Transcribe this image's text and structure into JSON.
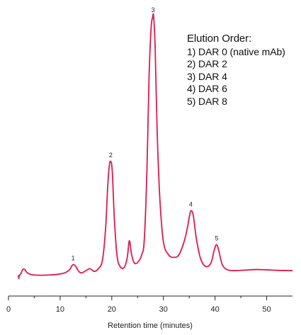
{
  "chart_data": {
    "type": "line",
    "xlabel": "Retention time (minutes)",
    "ylabel": "",
    "xlim": [
      0,
      55
    ],
    "ylim": [
      0,
      100
    ],
    "x_ticks": [
      0,
      10,
      20,
      30,
      40,
      50
    ],
    "grid": false,
    "line_color": "#e0194a",
    "legend": {
      "placement": "top-right",
      "title": "Elution Order:",
      "entries": [
        "1)  DAR 0 (native mAb)",
        "2)  DAR 2",
        "3)  DAR 4",
        "4)  DAR 6",
        "5)  DAR 8"
      ]
    },
    "peaks": [
      {
        "label": "1",
        "x": 12.5,
        "y": 4.2
      },
      {
        "label": "2",
        "x": 19.8,
        "y": 44.0
      },
      {
        "label": "3",
        "x": 28.0,
        "y": 100.0
      },
      {
        "label": "4",
        "x": 35.3,
        "y": 25.0
      },
      {
        "label": "5",
        "x": 40.3,
        "y": 11.9
      }
    ],
    "series": [
      {
        "x": [
          2.0,
          2.3,
          2.5,
          2.8,
          3.2,
          3.6,
          4.5,
          6.0,
          8.0,
          10.0,
          11.0,
          11.8,
          12.3,
          12.6,
          13.0,
          13.6,
          14.2,
          15.0,
          15.8,
          16.6,
          17.4,
          18.2,
          18.8,
          19.2,
          19.5,
          19.8,
          20.1,
          20.5,
          21.0,
          21.6,
          22.4,
          23.0,
          23.4,
          23.8,
          24.3,
          25.0,
          25.8,
          26.3,
          26.8,
          27.2,
          27.6,
          27.9,
          28.1,
          28.4,
          28.8,
          29.3,
          30.0,
          31.0,
          32.0,
          33.0,
          34.0,
          34.6,
          35.1,
          35.4,
          35.8,
          36.4,
          37.2,
          38.2,
          39.2,
          39.8,
          40.3,
          40.8,
          41.4,
          42.4,
          44.0,
          46.0,
          48.0,
          50.0,
          52.0,
          55.0
        ],
        "y": [
          0.0,
          0.5,
          1.2,
          2.4,
          2.2,
          1.1,
          0.3,
          0.1,
          0.2,
          0.6,
          1.1,
          2.2,
          3.8,
          4.2,
          3.6,
          1.6,
          1.0,
          1.9,
          2.6,
          1.6,
          2.6,
          6.0,
          18.0,
          34.0,
          42.0,
          44.0,
          40.0,
          22.0,
          8.0,
          3.5,
          3.1,
          7.0,
          13.4,
          8.5,
          5.0,
          5.0,
          8.0,
          14.0,
          40.0,
          75.0,
          95.0,
          99.5,
          100.0,
          88.0,
          55.0,
          30.0,
          13.0,
          8.0,
          7.0,
          8.0,
          13.0,
          18.0,
          23.5,
          25.0,
          23.0,
          14.0,
          6.5,
          3.5,
          4.8,
          9.5,
          11.9,
          9.0,
          4.2,
          2.2,
          1.9,
          2.1,
          2.3,
          2.2,
          2.0,
          1.9
        ]
      }
    ]
  }
}
